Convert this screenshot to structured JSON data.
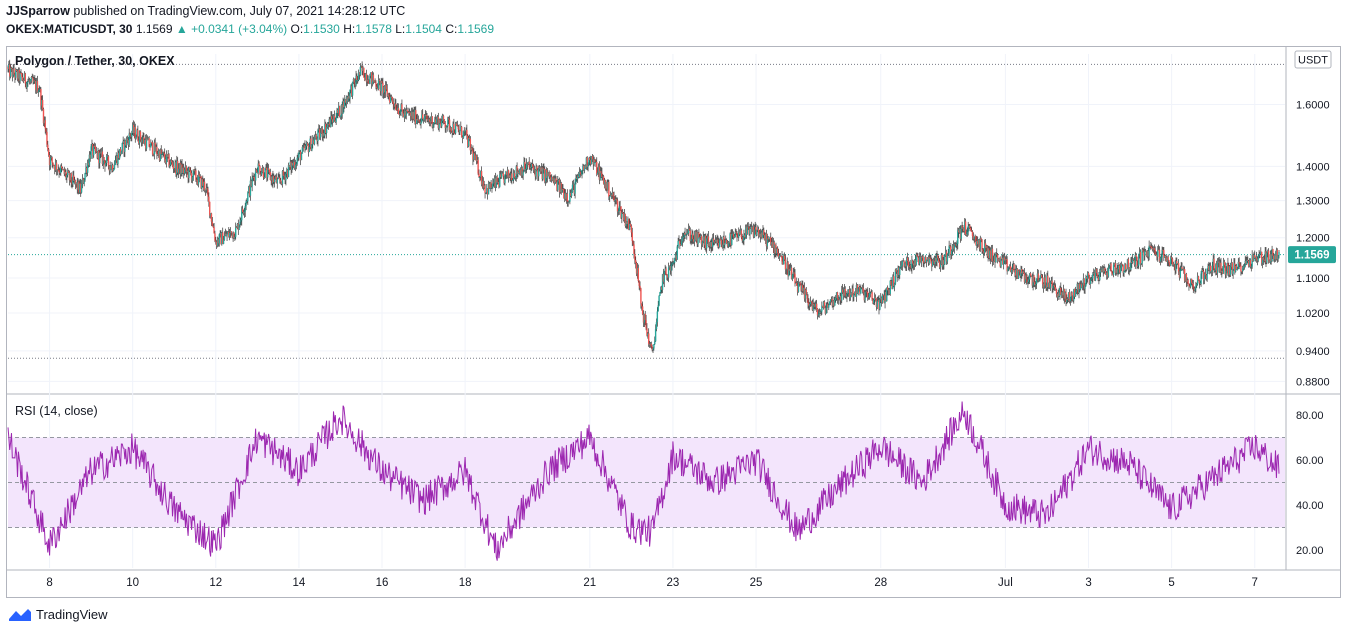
{
  "header": {
    "author": "JJSparrow",
    "published_text": "published on TradingView.com, July 07, 2021 14:28:12 UTC",
    "symbol_interval": "OKEX:MATICUSDT, 30",
    "last": "1.1569",
    "change": "▲ +0.0341 (+3.04%)",
    "o_label": "O:",
    "o_val": "1.1530",
    "h_label": "H:",
    "h_val": "1.1578",
    "l_label": "L:",
    "l_val": "1.1504",
    "c_label": "C:",
    "c_val": "1.1569"
  },
  "footer": {
    "brand": "TradingView"
  },
  "colors": {
    "up": "#26a69a",
    "down": "#ef5350",
    "rsi": "#9c27b0",
    "rsi_band": "#f3e5fc",
    "price_tag": "#26a69a"
  },
  "chart_data": [
    {
      "type": "candlestick",
      "title": "Polygon / Tether, 30, OKEX",
      "currency_badge": "USDT",
      "last_price_label": "1.1569",
      "scale": "log",
      "ylim": [
        0.86,
        1.8
      ],
      "y_ticks": [
        "1.6000",
        "1.4000",
        "1.3000",
        "1.2000",
        "1.1000",
        "1.0200",
        "0.9400",
        "0.8800"
      ],
      "high_line": 1.745,
      "low_line": 0.925,
      "last_price": 1.1569,
      "x_ticks": [
        "8",
        "10",
        "12",
        "14",
        "16",
        "18",
        "21",
        "23",
        "25",
        "28",
        "Jul",
        "3",
        "5",
        "7"
      ],
      "x_range": [
        "2021-06-07",
        "2021-07-07 14:00"
      ],
      "key_points": [
        {
          "date": "2021-06-07",
          "close": 1.72
        },
        {
          "date": "2021-06-07 18:00",
          "close": 1.66
        },
        {
          "date": "2021-06-08",
          "close": 1.42
        },
        {
          "date": "2021-06-08 18:00",
          "close": 1.33
        },
        {
          "date": "2021-06-09",
          "close": 1.45
        },
        {
          "date": "2021-06-09 12:00",
          "close": 1.4
        },
        {
          "date": "2021-06-10",
          "close": 1.51
        },
        {
          "date": "2021-06-11",
          "close": 1.4
        },
        {
          "date": "2021-06-11 12:00",
          "close": 1.37
        },
        {
          "date": "2021-06-11 18:00",
          "close": 1.34
        },
        {
          "date": "2021-06-12",
          "close": 1.19
        },
        {
          "date": "2021-06-12 12:00",
          "close": 1.22
        },
        {
          "date": "2021-06-13",
          "close": 1.4
        },
        {
          "date": "2021-06-13 12:00",
          "close": 1.35
        },
        {
          "date": "2021-06-14",
          "close": 1.43
        },
        {
          "date": "2021-06-14 12:00",
          "close": 1.5
        },
        {
          "date": "2021-06-15",
          "close": 1.58
        },
        {
          "date": "2021-06-15 12:00",
          "close": 1.72
        },
        {
          "date": "2021-06-16",
          "close": 1.66
        },
        {
          "date": "2021-06-16 12:00",
          "close": 1.57
        },
        {
          "date": "2021-06-17",
          "close": 1.55
        },
        {
          "date": "2021-06-17 12:00",
          "close": 1.54
        },
        {
          "date": "2021-06-18",
          "close": 1.5
        },
        {
          "date": "2021-06-18 12:00",
          "close": 1.33
        },
        {
          "date": "2021-06-19",
          "close": 1.37
        },
        {
          "date": "2021-06-19 12:00",
          "close": 1.4
        },
        {
          "date": "2021-06-20",
          "close": 1.37
        },
        {
          "date": "2021-06-20 12:00",
          "close": 1.31
        },
        {
          "date": "2021-06-21",
          "close": 1.43
        },
        {
          "date": "2021-06-21 12:00",
          "close": 1.32
        },
        {
          "date": "2021-06-22",
          "close": 1.22
        },
        {
          "date": "2021-06-22 06:00",
          "close": 1.03
        },
        {
          "date": "2021-06-22 12:00",
          "close": 0.93
        },
        {
          "date": "2021-06-22 18:00",
          "close": 1.1
        },
        {
          "date": "2021-06-23",
          "close": 1.13
        },
        {
          "date": "2021-06-23 06:00",
          "close": 1.22
        },
        {
          "date": "2021-06-23 12:00",
          "close": 1.2
        },
        {
          "date": "2021-06-24",
          "close": 1.18
        },
        {
          "date": "2021-06-24 12:00",
          "close": 1.2
        },
        {
          "date": "2021-06-25",
          "close": 1.22
        },
        {
          "date": "2021-06-25 12:00",
          "close": 1.17
        },
        {
          "date": "2021-06-26",
          "close": 1.08
        },
        {
          "date": "2021-06-26 12:00",
          "close": 1.02
        },
        {
          "date": "2021-06-27",
          "close": 1.06
        },
        {
          "date": "2021-06-27 12:00",
          "close": 1.07
        },
        {
          "date": "2021-06-28",
          "close": 1.04
        },
        {
          "date": "2021-06-28 12:00",
          "close": 1.13
        },
        {
          "date": "2021-06-29",
          "close": 1.15
        },
        {
          "date": "2021-06-29 12:00",
          "close": 1.14
        },
        {
          "date": "2021-06-30",
          "close": 1.23
        },
        {
          "date": "2021-06-30 12:00",
          "close": 1.17
        },
        {
          "date": "2021-07-01",
          "close": 1.13
        },
        {
          "date": "2021-07-01 12:00",
          "close": 1.1
        },
        {
          "date": "2021-07-02",
          "close": 1.09
        },
        {
          "date": "2021-07-02 12:00",
          "close": 1.05
        },
        {
          "date": "2021-07-03",
          "close": 1.1
        },
        {
          "date": "2021-07-03 12:00",
          "close": 1.12
        },
        {
          "date": "2021-07-04",
          "close": 1.13
        },
        {
          "date": "2021-07-04 12:00",
          "close": 1.17
        },
        {
          "date": "2021-07-05",
          "close": 1.14
        },
        {
          "date": "2021-07-05 12:00",
          "close": 1.08
        },
        {
          "date": "2021-07-06",
          "close": 1.13
        },
        {
          "date": "2021-07-06 12:00",
          "close": 1.12
        },
        {
          "date": "2021-07-07",
          "close": 1.15
        },
        {
          "date": "2021-07-07 14:00",
          "close": 1.1569
        }
      ]
    },
    {
      "type": "line",
      "title": "RSI (14, close)",
      "ylim": [
        12,
        88
      ],
      "y_ticks": [
        "80.00",
        "60.00",
        "40.00",
        "20.00"
      ],
      "bands": {
        "upper": 70,
        "middle": 50,
        "lower": 30
      },
      "x_range": [
        "2021-06-07",
        "2021-07-07 14:00"
      ],
      "key_points": [
        {
          "date": "2021-06-07",
          "rsi": 70
        },
        {
          "date": "2021-06-08",
          "rsi": 22
        },
        {
          "date": "2021-06-09",
          "rsi": 55
        },
        {
          "date": "2021-06-10",
          "rsi": 65
        },
        {
          "date": "2021-06-11",
          "rsi": 38
        },
        {
          "date": "2021-06-12",
          "rsi": 22
        },
        {
          "date": "2021-06-13",
          "rsi": 70
        },
        {
          "date": "2021-06-14",
          "rsi": 55
        },
        {
          "date": "2021-06-15",
          "rsi": 79
        },
        {
          "date": "2021-06-16",
          "rsi": 55
        },
        {
          "date": "2021-06-17",
          "rsi": 42
        },
        {
          "date": "2021-06-18",
          "rsi": 55
        },
        {
          "date": "2021-06-18 18:00",
          "rsi": 20
        },
        {
          "date": "2021-06-20",
          "rsi": 55
        },
        {
          "date": "2021-06-21",
          "rsi": 70
        },
        {
          "date": "2021-06-22",
          "rsi": 30
        },
        {
          "date": "2021-06-22 12:00",
          "rsi": 28
        },
        {
          "date": "2021-06-23",
          "rsi": 62
        },
        {
          "date": "2021-06-24",
          "rsi": 50
        },
        {
          "date": "2021-06-25",
          "rsi": 60
        },
        {
          "date": "2021-06-26",
          "rsi": 28
        },
        {
          "date": "2021-06-27",
          "rsi": 48
        },
        {
          "date": "2021-06-28",
          "rsi": 66
        },
        {
          "date": "2021-06-29",
          "rsi": 50
        },
        {
          "date": "2021-06-30",
          "rsi": 82
        },
        {
          "date": "2021-07-01",
          "rsi": 40
        },
        {
          "date": "2021-07-02",
          "rsi": 35
        },
        {
          "date": "2021-07-03",
          "rsi": 65
        },
        {
          "date": "2021-07-04",
          "rsi": 58
        },
        {
          "date": "2021-07-05",
          "rsi": 38
        },
        {
          "date": "2021-07-06",
          "rsi": 52
        },
        {
          "date": "2021-07-07",
          "rsi": 66
        },
        {
          "date": "2021-07-07 14:00",
          "rsi": 56
        }
      ]
    }
  ]
}
